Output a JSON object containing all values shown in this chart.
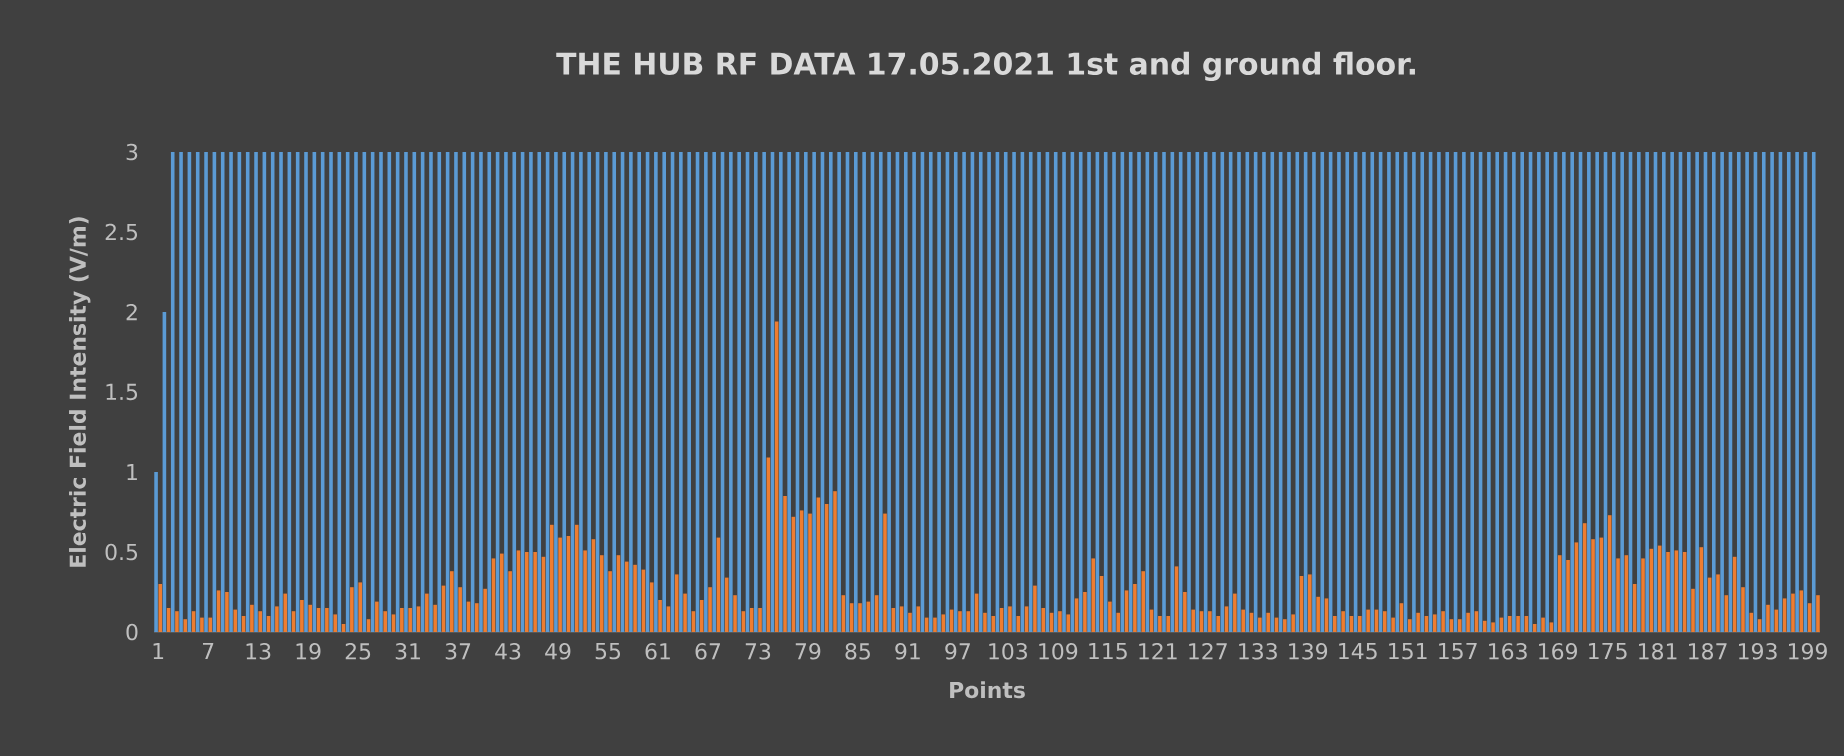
{
  "chart_data": {
    "type": "bar",
    "title": "THE HUB RF DATA 17.05.2021 1st and ground floor.",
    "xlabel": "Points",
    "ylabel": "Electric Field Intensity (V/m)",
    "categories": [
      "1",
      null,
      null,
      null,
      null,
      null,
      "7",
      null,
      null,
      null,
      null,
      null,
      "13",
      null,
      null,
      null,
      null,
      null,
      "19",
      null,
      null,
      null,
      null,
      null,
      "25",
      null,
      null,
      null,
      null,
      null,
      "31",
      null,
      null,
      null,
      null,
      null,
      "37",
      null,
      null,
      null,
      null,
      null,
      "43",
      null,
      null,
      null,
      null,
      null,
      "49",
      null,
      null,
      null,
      null,
      null,
      "55",
      null,
      null,
      null,
      null,
      null,
      "61",
      null,
      null,
      null,
      null,
      null,
      "67",
      null,
      null,
      null,
      null,
      null,
      "73",
      null,
      null,
      null,
      null,
      null,
      "79",
      null,
      null,
      null,
      null,
      null,
      "85",
      null,
      null,
      null,
      null,
      null,
      "91",
      null,
      null,
      null,
      null,
      null,
      "97",
      null,
      null,
      null,
      null,
      null,
      "103",
      null,
      null,
      null,
      null,
      null,
      "109",
      null,
      null,
      null,
      null,
      null,
      "115",
      null,
      null,
      null,
      null,
      null,
      "121",
      null,
      null,
      null,
      null,
      null,
      "127",
      null,
      null,
      null,
      null,
      null,
      "133",
      null,
      null,
      null,
      null,
      null,
      "139",
      null,
      null,
      null,
      null,
      null,
      "145",
      null,
      null,
      null,
      null,
      null,
      "151",
      null,
      null,
      null,
      null,
      null,
      "157",
      null,
      null,
      null,
      null,
      null,
      "163",
      null,
      null,
      null,
      null,
      null,
      "169",
      null,
      null,
      null,
      null,
      null,
      "175",
      null,
      null,
      null,
      null,
      null,
      "181",
      null,
      null,
      null,
      null,
      null,
      "187",
      null,
      null,
      null,
      null,
      null,
      "193",
      null,
      null,
      null,
      null,
      null,
      "199",
      null
    ],
    "series": [
      {
        "color": "#5b9bd5",
        "values": [
          1,
          2,
          3,
          3,
          3,
          3,
          3,
          3,
          3,
          3,
          3,
          3,
          3,
          3,
          3,
          3,
          3,
          3,
          3,
          3,
          3,
          3,
          3,
          3,
          3,
          3,
          3,
          3,
          3,
          3,
          3,
          3,
          3,
          3,
          3,
          3,
          3,
          3,
          3,
          3,
          3,
          3,
          3,
          3,
          3,
          3,
          3,
          3,
          3,
          3,
          3,
          3,
          3,
          3,
          3,
          3,
          3,
          3,
          3,
          3,
          3,
          3,
          3,
          3,
          3,
          3,
          3,
          3,
          3,
          3,
          3,
          3,
          3,
          3,
          3,
          3,
          3,
          3,
          3,
          3,
          3,
          3,
          3,
          3,
          3,
          3,
          3,
          3,
          3,
          3,
          3,
          3,
          3,
          3,
          3,
          3,
          3,
          3,
          3,
          3,
          3,
          3,
          3,
          3,
          3,
          3,
          3,
          3,
          3,
          3,
          3,
          3,
          3,
          3,
          3,
          3,
          3,
          3,
          3,
          3,
          3,
          3,
          3,
          3,
          3,
          3,
          3,
          3,
          3,
          3,
          3,
          3,
          3,
          3,
          3,
          3,
          3,
          3,
          3,
          3,
          3,
          3,
          3,
          3,
          3,
          3,
          3,
          3,
          3,
          3,
          3,
          3,
          3,
          3,
          3,
          3,
          3,
          3,
          3,
          3,
          3,
          3,
          3,
          3,
          3,
          3,
          3,
          3,
          3,
          3,
          3,
          3,
          3,
          3,
          3,
          3,
          3,
          3,
          3,
          3,
          3,
          3,
          3,
          3,
          3,
          3,
          3,
          3,
          3,
          3,
          3,
          3,
          3,
          3,
          3,
          3,
          3,
          3,
          3,
          3
        ]
      },
      {
        "color": "#ed7d31",
        "values": [
          0.3,
          0.15,
          0.13,
          0.08,
          0.13,
          0.09,
          0.09,
          0.26,
          0.25,
          0.14,
          0.1,
          0.17,
          0.13,
          0.1,
          0.16,
          0.24,
          0.13,
          0.2,
          0.17,
          0.15,
          0.15,
          0.11,
          0.05,
          0.28,
          0.31,
          0.08,
          0.19,
          0.13,
          0.11,
          0.15,
          0.15,
          0.16,
          0.24,
          0.17,
          0.29,
          0.38,
          0.28,
          0.19,
          0.18,
          0.27,
          0.46,
          0.49,
          0.38,
          0.51,
          0.5,
          0.5,
          0.47,
          0.67,
          0.59,
          0.6,
          0.67,
          0.51,
          0.58,
          0.48,
          0.38,
          0.48,
          0.44,
          0.42,
          0.39,
          0.31,
          0.2,
          0.16,
          0.36,
          0.24,
          0.13,
          0.2,
          0.28,
          0.59,
          0.34,
          0.23,
          0.13,
          0.15,
          0.15,
          1.09,
          1.94,
          0.85,
          0.72,
          0.76,
          0.74,
          0.84,
          0.8,
          0.88,
          0.23,
          0.18,
          0.18,
          0.19,
          0.23,
          0.74,
          0.15,
          0.16,
          0.12,
          0.16,
          0.09,
          0.09,
          0.11,
          0.14,
          0.13,
          0.13,
          0.24,
          0.12,
          0.1,
          0.15,
          0.16,
          0.1,
          0.16,
          0.29,
          0.15,
          0.12,
          0.13,
          0.11,
          0.21,
          0.25,
          0.46,
          0.35,
          0.19,
          0.12,
          0.26,
          0.3,
          0.38,
          0.14,
          0.1,
          0.1,
          0.41,
          0.25,
          0.14,
          0.13,
          0.13,
          0.1,
          0.16,
          0.24,
          0.14,
          0.12,
          0.09,
          0.12,
          0.09,
          0.08,
          0.11,
          0.35,
          0.36,
          0.22,
          0.21,
          0.1,
          0.13,
          0.1,
          0.1,
          0.14,
          0.14,
          0.13,
          0.09,
          0.18,
          0.08,
          0.12,
          0.1,
          0.11,
          0.13,
          0.08,
          0.08,
          0.12,
          0.13,
          0.07,
          0.06,
          0.09,
          0.1,
          0.1,
          0.1,
          0.05,
          0.09,
          0.06,
          0.48,
          0.45,
          0.56,
          0.68,
          0.58,
          0.59,
          0.73,
          0.46,
          0.48,
          0.3,
          0.46,
          0.52,
          0.54,
          0.5,
          0.51,
          0.5,
          0.27,
          0.53,
          0.34,
          0.36,
          0.23,
          0.47,
          0.28,
          0.12,
          0.08,
          0.17,
          0.14,
          0.21,
          0.24,
          0.26,
          0.18,
          0.23
        ]
      }
    ],
    "ylim": [
      0,
      3
    ],
    "yticks": [
      0,
      0.5,
      1,
      1.5,
      2,
      2.5,
      3
    ]
  }
}
